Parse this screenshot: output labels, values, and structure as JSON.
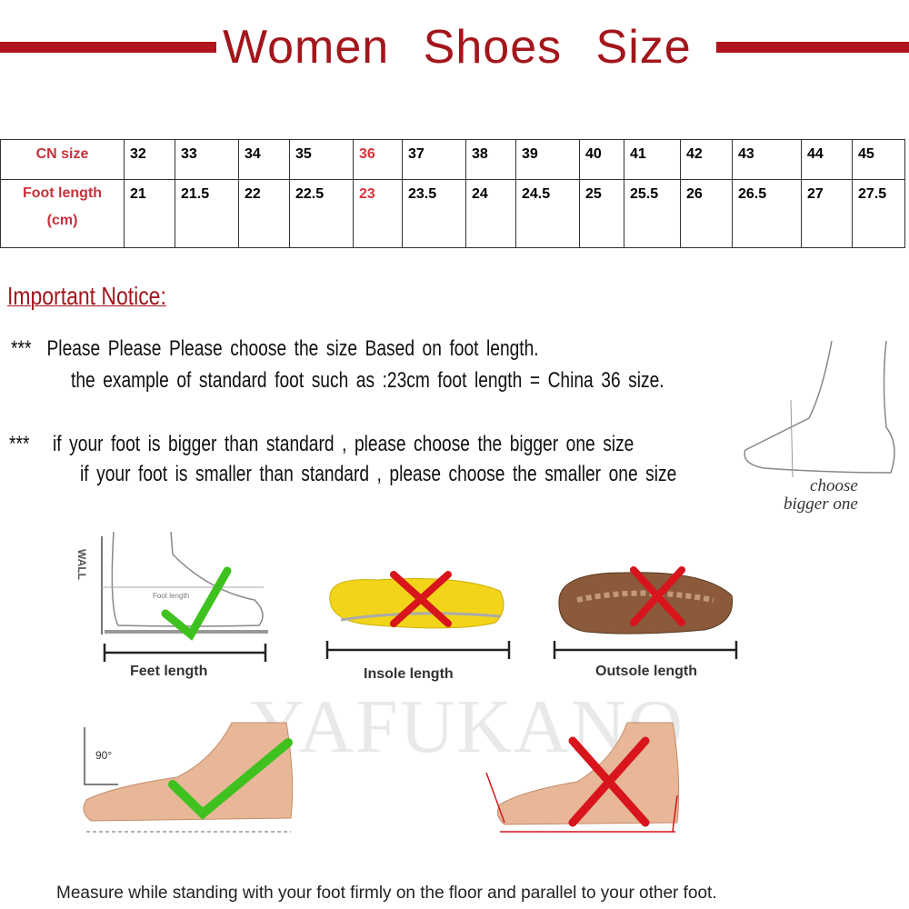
{
  "title": "Women Shoes Size",
  "colors": {
    "brand_red": "#a3161c",
    "highlight_red": "#d8323c",
    "check_green": "#3fc21f",
    "cross_red": "#d8141c"
  },
  "size_table": {
    "row_headers": [
      "CN size",
      "Foot length",
      "(cm)"
    ],
    "cn_sizes": [
      "32",
      "33",
      "34",
      "35",
      "36",
      "37",
      "38",
      "39",
      "40",
      "41",
      "42",
      "43",
      "44",
      "45"
    ],
    "foot_length_cm": [
      "21",
      "21.5",
      "22",
      "22.5",
      "23",
      "23.5",
      "24",
      "24.5",
      "25",
      "25.5",
      "26",
      "26.5",
      "27",
      "27.5"
    ],
    "highlighted_size": "36"
  },
  "notice": {
    "title": "Important Notice:",
    "bullet": "***",
    "line1": "Please Please Please choose the size Based on foot length.",
    "line2": "the example of standard foot such as :23cm foot length = China 36 size.",
    "line3": "if your foot is bigger than standard , please choose the bigger one size",
    "line4": "if your foot is smaller than standard , please choose the smaller one size",
    "choose_label_1": "choose",
    "choose_label_2": "bigger one"
  },
  "methods": {
    "feet_length": "Feet length",
    "insole_length": "Insole length",
    "outsole_length": "Outsole length",
    "wall_label": "WALL",
    "foot_length_small": "Foot length",
    "angle_label": "90°"
  },
  "watermark": "YAFUKANO",
  "footer": "Measure while standing with your foot firmly on the floor and parallel to your other foot."
}
